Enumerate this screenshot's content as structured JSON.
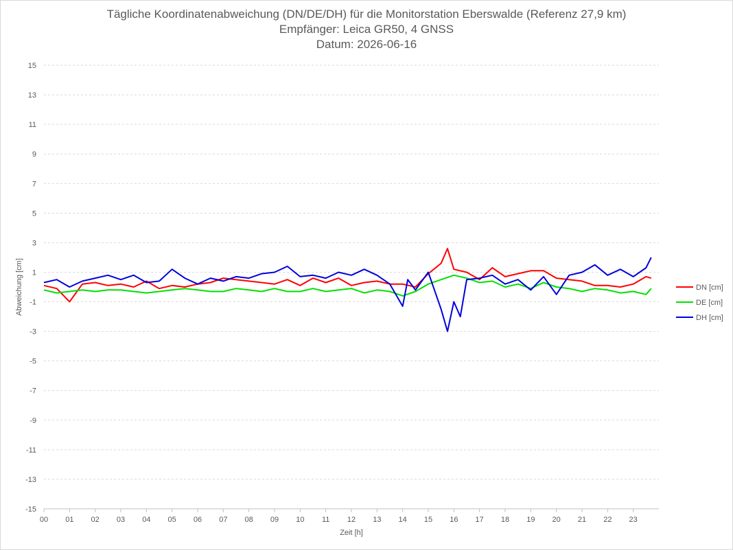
{
  "chart_data": {
    "type": "line",
    "title": "Tägliche Koordinatenabweichung (DN/DE/DH) für die Monitorstation Eberswalde (Referenz 27,9 km)",
    "subtitle": "Empfänger: Leica GR50, 4 GNSS",
    "date_line": "Datum: 2026-06-16",
    "xlabel": "Zeit [h]",
    "ylabel": "Abweichung [cm]",
    "xlim": [
      0,
      24
    ],
    "ylim": [
      -15,
      15
    ],
    "x_ticks": [
      "00",
      "01",
      "02",
      "03",
      "04",
      "05",
      "06",
      "07",
      "08",
      "09",
      "10",
      "11",
      "12",
      "13",
      "14",
      "15",
      "16",
      "17",
      "18",
      "19",
      "20",
      "21",
      "22",
      "23"
    ],
    "y_ticks": [
      15,
      13,
      11,
      9,
      7,
      5,
      3,
      1,
      -1,
      -3,
      -5,
      -7,
      -9,
      -11,
      -13,
      -15
    ],
    "grid": true,
    "legend_position": "right",
    "series": [
      {
        "name": "DN [cm]",
        "color": "#ff0000",
        "x": [
          0,
          0.5,
          1,
          1.5,
          2,
          2.5,
          3,
          3.5,
          4,
          4.5,
          5,
          5.5,
          6,
          6.5,
          7,
          7.5,
          8,
          8.5,
          9,
          9.5,
          10,
          10.5,
          11,
          11.5,
          12,
          12.5,
          13,
          13.5,
          14,
          14.5,
          15,
          15.5,
          15.75,
          16,
          16.5,
          17,
          17.5,
          18,
          18.5,
          19,
          19.5,
          20,
          20.5,
          21,
          21.5,
          22,
          22.5,
          23,
          23.5,
          23.7
        ],
        "y": [
          0.1,
          -0.1,
          -1.0,
          0.2,
          0.3,
          0.1,
          0.2,
          0.0,
          0.4,
          -0.1,
          0.1,
          0.0,
          0.2,
          0.3,
          0.6,
          0.5,
          0.4,
          0.3,
          0.2,
          0.5,
          0.1,
          0.6,
          0.3,
          0.6,
          0.1,
          0.3,
          0.4,
          0.2,
          0.2,
          0.0,
          0.9,
          1.6,
          2.6,
          1.2,
          1.0,
          0.5,
          1.3,
          0.7,
          0.9,
          1.1,
          1.1,
          0.6,
          0.5,
          0.4,
          0.1,
          0.1,
          0.0,
          0.2,
          0.7,
          0.6
        ]
      },
      {
        "name": "DE [cm]",
        "color": "#00e000",
        "x": [
          0,
          0.5,
          1,
          1.5,
          2,
          2.5,
          3,
          3.5,
          4,
          4.5,
          5,
          5.5,
          6,
          6.5,
          7,
          7.5,
          8,
          8.5,
          9,
          9.5,
          10,
          10.5,
          11,
          11.5,
          12,
          12.5,
          13,
          13.5,
          14,
          14.5,
          15,
          15.5,
          16,
          16.5,
          17,
          17.5,
          18,
          18.5,
          19,
          19.5,
          20,
          20.5,
          21,
          21.5,
          22,
          22.5,
          23,
          23.5,
          23.7
        ],
        "y": [
          -0.2,
          -0.4,
          -0.3,
          -0.2,
          -0.3,
          -0.2,
          -0.2,
          -0.3,
          -0.4,
          -0.3,
          -0.2,
          -0.1,
          -0.2,
          -0.3,
          -0.3,
          -0.1,
          -0.2,
          -0.3,
          -0.1,
          -0.3,
          -0.3,
          -0.1,
          -0.3,
          -0.2,
          -0.1,
          -0.4,
          -0.2,
          -0.3,
          -0.6,
          -0.3,
          0.2,
          0.5,
          0.8,
          0.6,
          0.3,
          0.4,
          0.0,
          0.2,
          -0.1,
          0.3,
          0.0,
          -0.1,
          -0.3,
          -0.1,
          -0.2,
          -0.4,
          -0.3,
          -0.5,
          -0.1
        ]
      },
      {
        "name": "DH [cm]",
        "color": "#0000dd",
        "x": [
          0,
          0.5,
          1,
          1.5,
          2,
          2.5,
          3,
          3.5,
          4,
          4.5,
          5,
          5.5,
          6,
          6.5,
          7,
          7.5,
          8,
          8.5,
          9,
          9.5,
          10,
          10.5,
          11,
          11.5,
          12,
          12.5,
          13,
          13.5,
          14,
          14.2,
          14.5,
          15,
          15.5,
          15.75,
          16,
          16.25,
          16.5,
          17,
          17.5,
          18,
          18.5,
          19,
          19.5,
          20,
          20.5,
          21,
          21.5,
          22,
          22.5,
          23,
          23.5,
          23.7
        ],
        "y": [
          0.3,
          0.5,
          0.0,
          0.4,
          0.6,
          0.8,
          0.5,
          0.8,
          0.3,
          0.4,
          1.2,
          0.6,
          0.2,
          0.6,
          0.4,
          0.7,
          0.6,
          0.9,
          1.0,
          1.4,
          0.7,
          0.8,
          0.6,
          1.0,
          0.8,
          1.2,
          0.8,
          0.2,
          -1.3,
          0.5,
          -0.2,
          1.0,
          -1.5,
          -3.0,
          -1.0,
          -2.0,
          0.5,
          0.6,
          0.8,
          0.2,
          0.5,
          -0.2,
          0.7,
          -0.5,
          0.8,
          1.0,
          1.5,
          0.8,
          1.2,
          0.7,
          1.3,
          2.0
        ]
      }
    ]
  }
}
